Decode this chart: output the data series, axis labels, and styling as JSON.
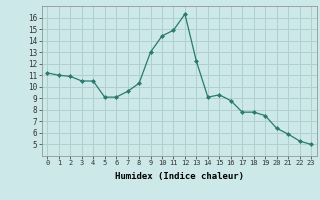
{
  "x": [
    0,
    1,
    2,
    3,
    4,
    5,
    6,
    7,
    8,
    9,
    10,
    11,
    12,
    13,
    14,
    15,
    16,
    17,
    18,
    19,
    20,
    21,
    22,
    23
  ],
  "y": [
    11.2,
    11.0,
    10.9,
    10.5,
    10.5,
    9.1,
    9.1,
    9.6,
    10.3,
    13.0,
    14.4,
    14.9,
    16.3,
    12.2,
    9.1,
    9.3,
    8.8,
    7.8,
    7.8,
    7.5,
    6.4,
    5.9,
    5.3,
    5.0
  ],
  "xlabel": "Humidex (Indice chaleur)",
  "ylim": [
    4,
    17
  ],
  "xlim": [
    -0.5,
    23.5
  ],
  "yticks": [
    5,
    6,
    7,
    8,
    9,
    10,
    11,
    12,
    13,
    14,
    15,
    16
  ],
  "xticks": [
    0,
    1,
    2,
    3,
    4,
    5,
    6,
    7,
    8,
    9,
    10,
    11,
    12,
    13,
    14,
    15,
    16,
    17,
    18,
    19,
    20,
    21,
    22,
    23
  ],
  "xtick_labels": [
    "0",
    "1",
    "2",
    "3",
    "4",
    "5",
    "6",
    "7",
    "8",
    "9",
    "10",
    "11",
    "12",
    "13",
    "14",
    "15",
    "16",
    "17",
    "18",
    "19",
    "20",
    "21",
    "22",
    "23"
  ],
  "line_color": "#2a7a6f",
  "marker": "D",
  "marker_size": 2,
  "bg_color": "#cce8e8",
  "grid_color": "#b0d0d0",
  "title": ""
}
